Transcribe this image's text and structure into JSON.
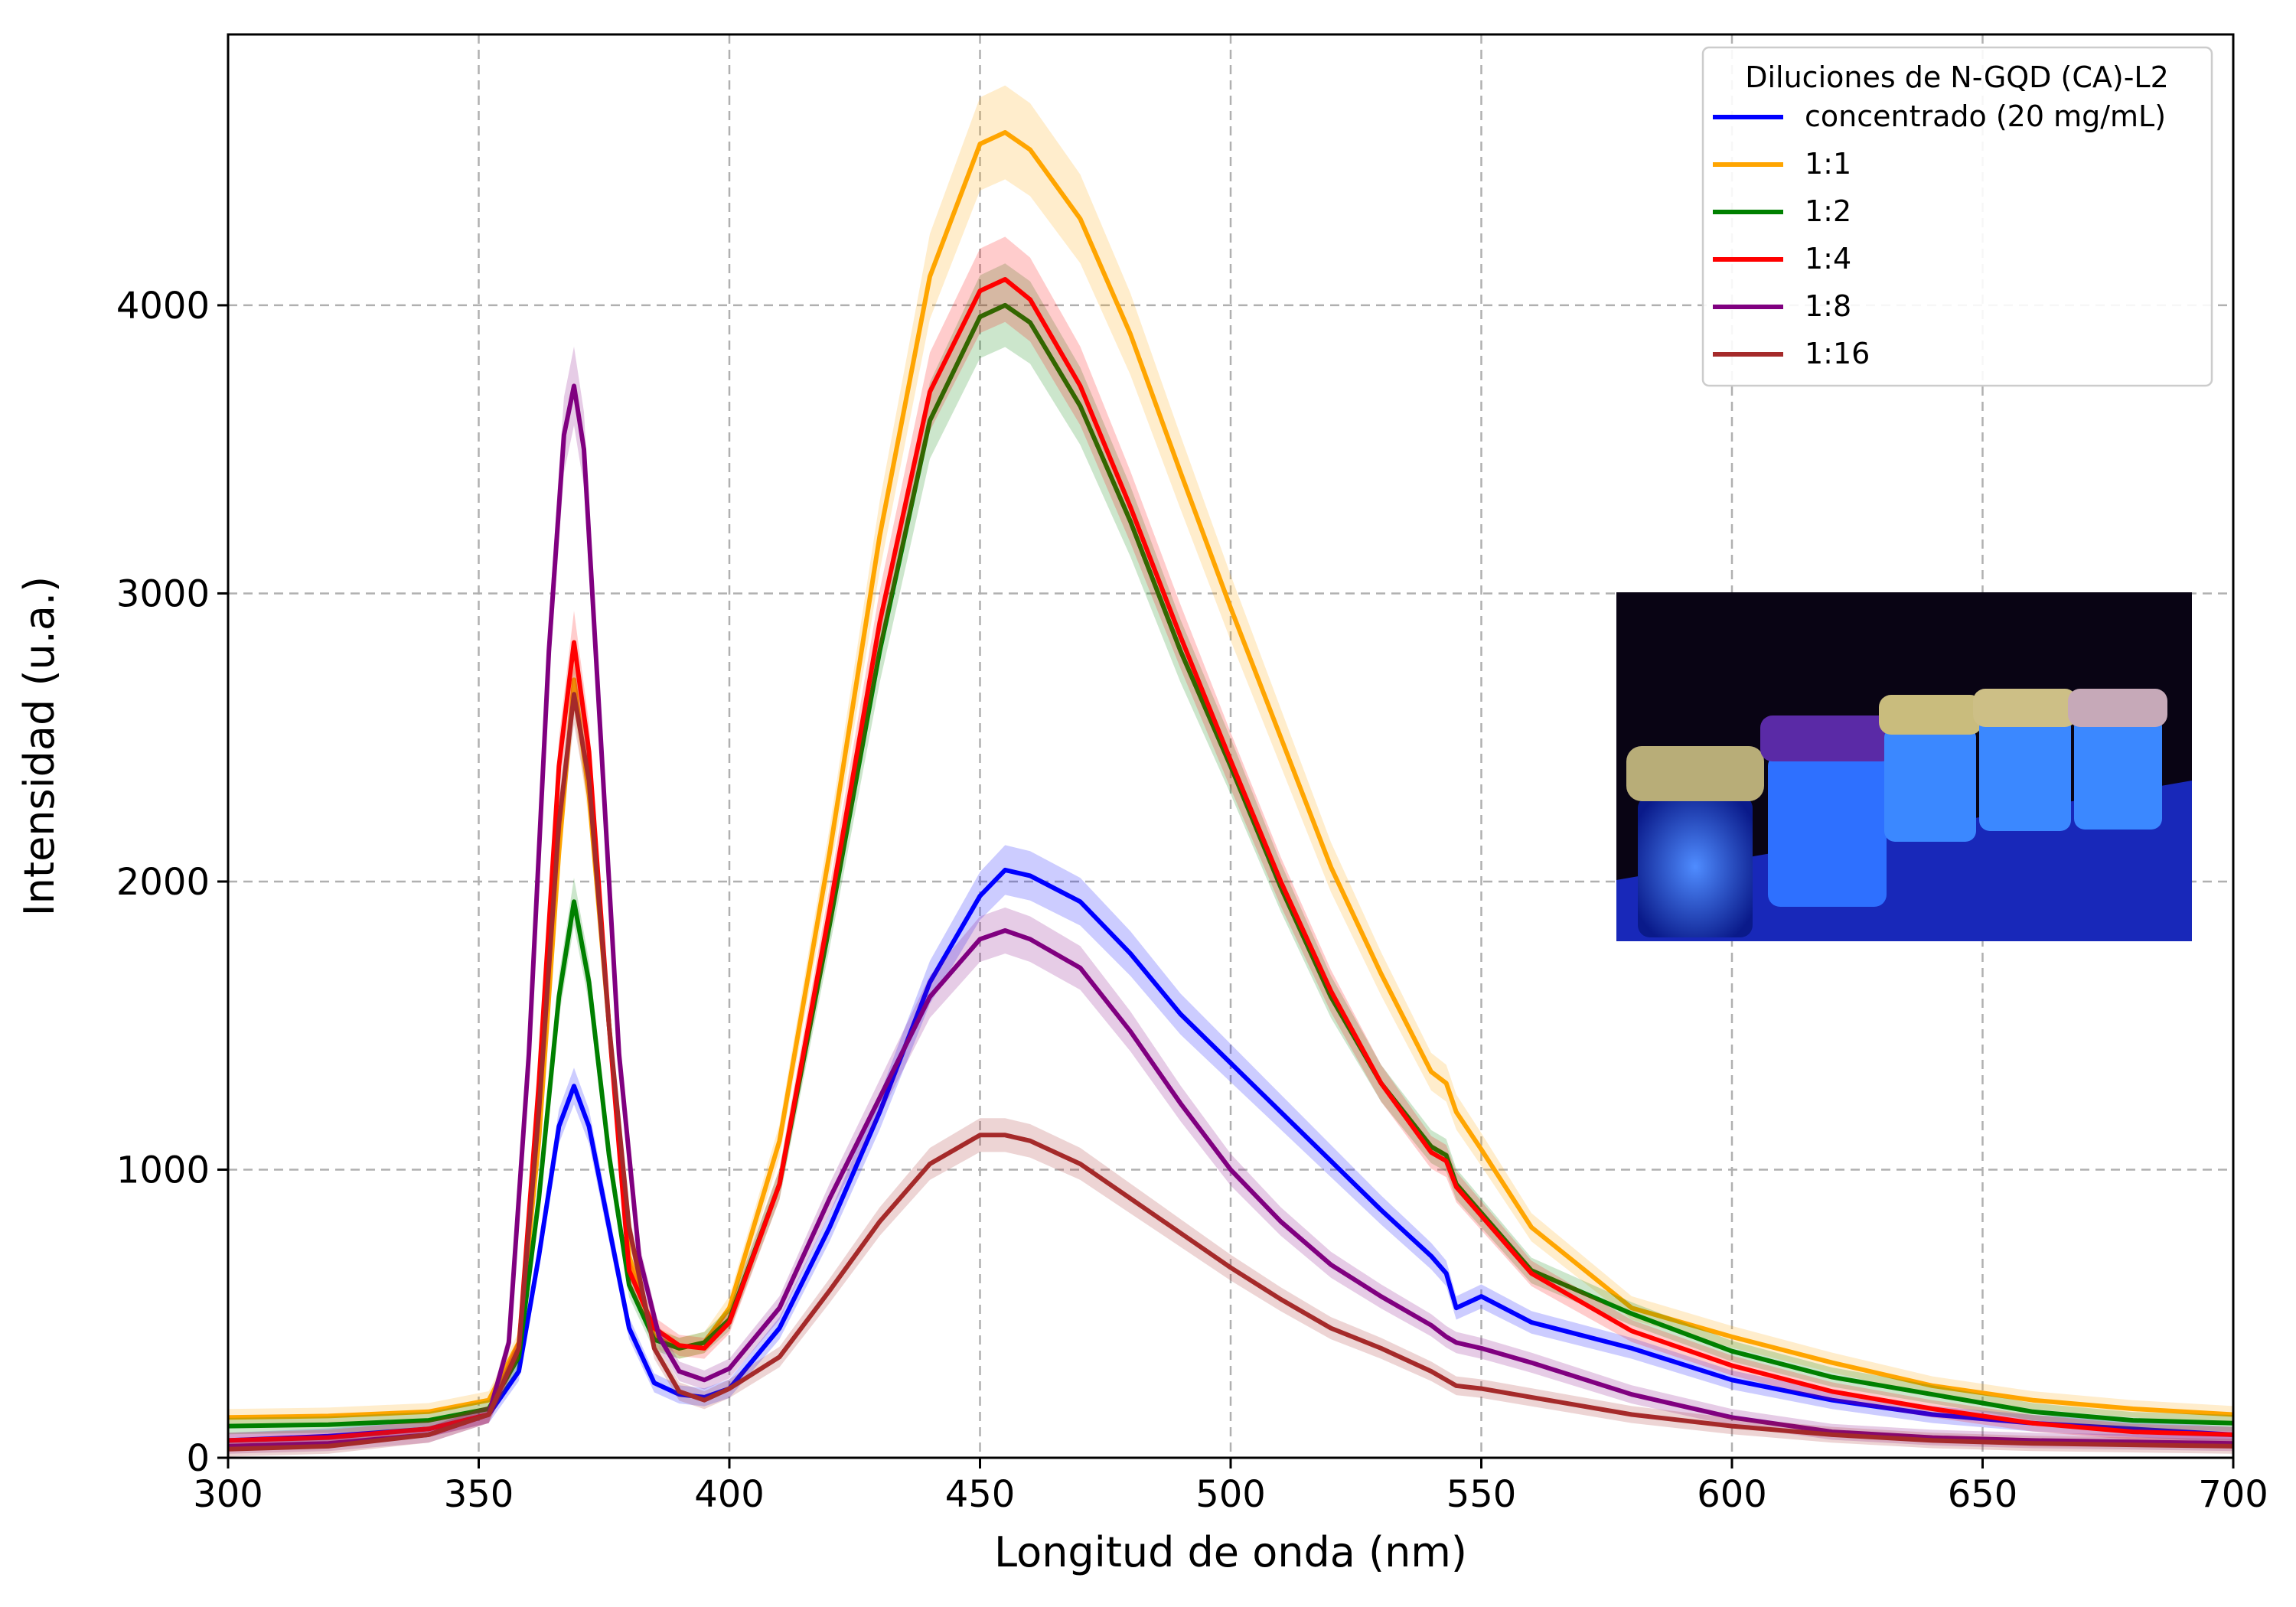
{
  "chart_data": {
    "type": "line",
    "xlabel": "Longitud de onda (nm)",
    "ylabel": "Intensidad (u.a.)",
    "xlim": [
      300,
      700
    ],
    "ylim": [
      0,
      4940
    ],
    "xticks": [
      300,
      350,
      400,
      450,
      500,
      550,
      600,
      650,
      700
    ],
    "yticks": [
      0,
      1000,
      2000,
      3000,
      4000
    ],
    "grid": true,
    "legend": {
      "title": "Diluciones de N-GQD (CA)-L2",
      "position": "top-right"
    },
    "inset_image": {
      "description_icon": "photo-vials-uv",
      "position": "right"
    },
    "series": [
      {
        "name": "concentrado (20 mg/mL)",
        "color": "#0000ff",
        "x": [
          300,
          320,
          340,
          352,
          358,
          362,
          366,
          369,
          372,
          376,
          380,
          385,
          390,
          395,
          400,
          410,
          420,
          430,
          440,
          450,
          455,
          460,
          470,
          480,
          490,
          500,
          510,
          520,
          530,
          540,
          543,
          545,
          550,
          560,
          580,
          600,
          620,
          640,
          660,
          680,
          700
        ],
        "y": [
          60,
          75,
          100,
          150,
          300,
          700,
          1150,
          1290,
          1150,
          800,
          450,
          260,
          220,
          210,
          240,
          450,
          800,
          1200,
          1650,
          1950,
          2040,
          2020,
          1930,
          1750,
          1540,
          1370,
          1200,
          1030,
          860,
          700,
          640,
          520,
          560,
          470,
          380,
          270,
          200,
          150,
          120,
          100,
          80
        ]
      },
      {
        "name": "1:1",
        "color": "#ffa500",
        "x": [
          300,
          320,
          340,
          352,
          358,
          362,
          366,
          369,
          372,
          376,
          380,
          385,
          390,
          395,
          400,
          410,
          420,
          430,
          440,
          450,
          455,
          460,
          470,
          480,
          490,
          500,
          510,
          520,
          530,
          540,
          543,
          545,
          550,
          560,
          580,
          600,
          620,
          640,
          660,
          680,
          700
        ],
        "y": [
          140,
          145,
          160,
          200,
          400,
          1100,
          2100,
          2700,
          2300,
          1500,
          700,
          420,
          380,
          400,
          520,
          1100,
          2100,
          3200,
          4100,
          4560,
          4600,
          4540,
          4300,
          3900,
          3420,
          2950,
          2500,
          2050,
          1680,
          1340,
          1300,
          1200,
          1070,
          800,
          520,
          420,
          330,
          250,
          200,
          170,
          150
        ]
      },
      {
        "name": "1:2",
        "color": "#008000",
        "x": [
          300,
          320,
          340,
          352,
          358,
          362,
          366,
          369,
          372,
          376,
          380,
          385,
          390,
          395,
          400,
          410,
          420,
          430,
          440,
          450,
          455,
          460,
          470,
          480,
          490,
          500,
          510,
          520,
          530,
          540,
          543,
          545,
          550,
          560,
          580,
          600,
          620,
          640,
          660,
          680,
          700
        ],
        "y": [
          110,
          115,
          130,
          170,
          350,
          900,
          1600,
          1930,
          1650,
          1050,
          600,
          410,
          380,
          400,
          480,
          950,
          1850,
          2800,
          3600,
          3960,
          4000,
          3940,
          3650,
          3250,
          2800,
          2400,
          1980,
          1600,
          1300,
          1080,
          1050,
          950,
          850,
          650,
          500,
          370,
          280,
          220,
          160,
          130,
          120
        ]
      },
      {
        "name": "1:4",
        "color": "#ff0000",
        "x": [
          300,
          320,
          340,
          352,
          358,
          362,
          366,
          369,
          372,
          376,
          380,
          385,
          390,
          395,
          400,
          410,
          420,
          430,
          440,
          450,
          455,
          460,
          470,
          480,
          490,
          500,
          510,
          520,
          530,
          540,
          543,
          545,
          550,
          560,
          580,
          600,
          620,
          640,
          660,
          680,
          700
        ],
        "y": [
          60,
          70,
          100,
          150,
          380,
          1300,
          2400,
          2830,
          2450,
          1500,
          650,
          450,
          390,
          380,
          470,
          950,
          1900,
          2900,
          3700,
          4050,
          4090,
          4020,
          3720,
          3300,
          2850,
          2420,
          2000,
          1620,
          1300,
          1060,
          1030,
          940,
          840,
          640,
          440,
          320,
          230,
          170,
          120,
          90,
          80
        ]
      },
      {
        "name": "1:8",
        "color": "#800080",
        "x": [
          300,
          320,
          340,
          352,
          356,
          360,
          364,
          367,
          369,
          371,
          374,
          378,
          382,
          386,
          390,
          395,
          400,
          410,
          420,
          430,
          440,
          450,
          455,
          460,
          470,
          480,
          490,
          500,
          510,
          520,
          530,
          540,
          543,
          545,
          550,
          560,
          580,
          600,
          620,
          640,
          660,
          680,
          700
        ],
        "y": [
          40,
          50,
          80,
          150,
          400,
          1400,
          2800,
          3550,
          3720,
          3500,
          2600,
          1400,
          700,
          420,
          300,
          270,
          310,
          520,
          900,
          1250,
          1600,
          1800,
          1830,
          1800,
          1700,
          1480,
          1230,
          1000,
          820,
          670,
          560,
          460,
          420,
          400,
          380,
          330,
          220,
          140,
          90,
          70,
          60,
          55,
          50
        ]
      },
      {
        "name": "1:16",
        "color": "#a52a2a",
        "x": [
          300,
          320,
          340,
          352,
          358,
          362,
          366,
          369,
          372,
          376,
          380,
          385,
          390,
          395,
          400,
          410,
          420,
          430,
          440,
          450,
          455,
          460,
          470,
          480,
          490,
          500,
          510,
          520,
          530,
          540,
          543,
          545,
          550,
          560,
          580,
          600,
          620,
          640,
          660,
          680,
          700
        ],
        "y": [
          30,
          40,
          80,
          150,
          380,
          1200,
          2200,
          2650,
          2350,
          1500,
          800,
          380,
          230,
          200,
          240,
          350,
          580,
          820,
          1020,
          1120,
          1120,
          1100,
          1020,
          900,
          780,
          660,
          550,
          450,
          380,
          300,
          270,
          250,
          240,
          210,
          150,
          110,
          80,
          60,
          50,
          45,
          40
        ]
      }
    ]
  }
}
